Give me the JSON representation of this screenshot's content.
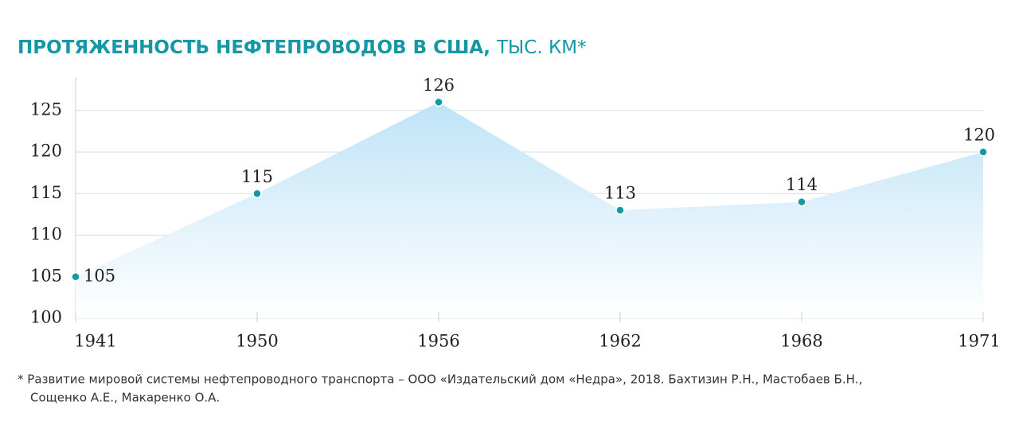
{
  "chart_data": {
    "type": "area",
    "title": "ПРОТЯЖЕННОСТЬ НЕФТЕПРОВОДОВ В США,",
    "unit": "ТЫС. КМ*",
    "categories": [
      "1941",
      "1950",
      "1956",
      "1962",
      "1968",
      "1971"
    ],
    "values": [
      105,
      115,
      126,
      113,
      114,
      120
    ],
    "color": "#1597a6",
    "fill": "#bfe3f7",
    "ylim": [
      100,
      129
    ],
    "yticks": [
      100,
      105,
      110,
      115,
      120,
      125
    ],
    "grid": true,
    "footnote": [
      "* Развитие мировой системы нефтепроводного транспорта – ООО «Издательский дом «Недра», 2018. Бахтизин Р.Н., Мастобаев Б.Н.,",
      "Сощенко А.Е., Макаренко О.А."
    ]
  }
}
